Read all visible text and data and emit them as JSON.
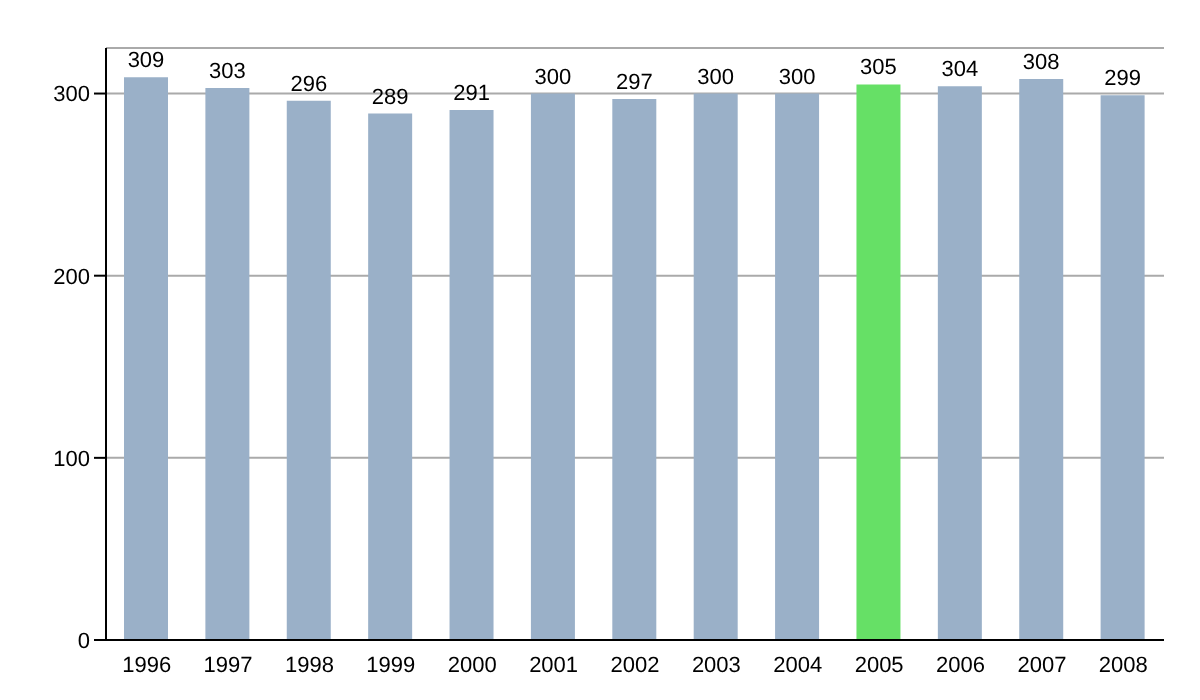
{
  "chart_data": {
    "type": "bar",
    "categories": [
      "1996",
      "1997",
      "1998",
      "1999",
      "2000",
      "2001",
      "2002",
      "2003",
      "2004",
      "2005",
      "2006",
      "2007",
      "2008"
    ],
    "values": [
      309,
      303,
      296,
      289,
      291,
      300,
      297,
      300,
      300,
      305,
      304,
      308,
      299
    ],
    "colors": [
      "#9ab0c8",
      "#9ab0c8",
      "#9ab0c8",
      "#9ab0c8",
      "#9ab0c8",
      "#9ab0c8",
      "#9ab0c8",
      "#9ab0c8",
      "#9ab0c8",
      "#66e066",
      "#9ab0c8",
      "#9ab0c8",
      "#9ab0c8"
    ],
    "ylim": [
      0,
      325
    ],
    "yticks": [
      0,
      100,
      200,
      300
    ],
    "grid": "y",
    "data_labels": true
  }
}
